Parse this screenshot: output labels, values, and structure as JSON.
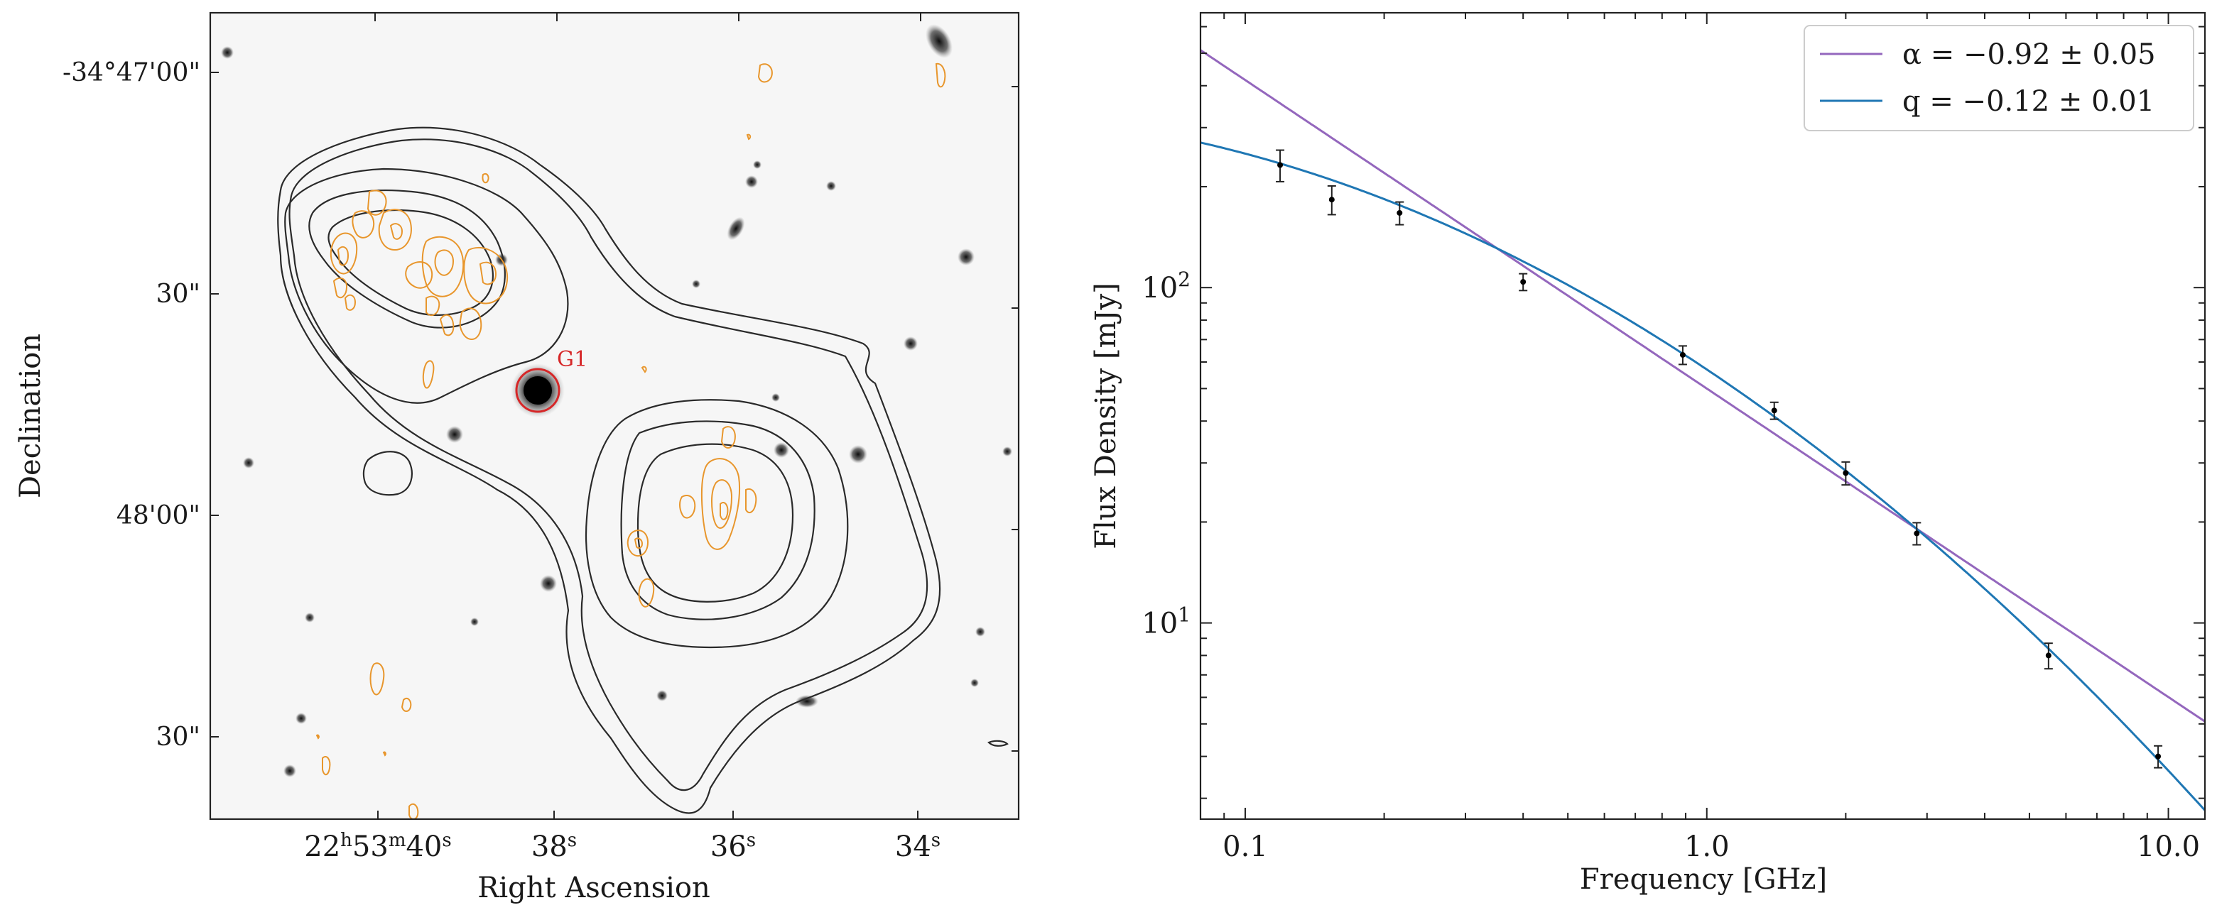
{
  "chart_data": [
    {
      "type": "image",
      "panel": "radio-contour-overlay",
      "xlabel": "Right Ascension",
      "ylabel": "Declination",
      "x_ticks": [
        {
          "h": "22",
          "m": "53",
          "s": "40"
        },
        {
          "s": "38"
        },
        {
          "s": "36"
        },
        {
          "s": "34"
        }
      ],
      "y_ticks": [
        "-34°47'00\"",
        "30\"",
        "48'00\"",
        "30\""
      ],
      "marker_label": "G1",
      "colors": {
        "contours": "#222222",
        "overlay_contours": "#e8962c",
        "marker": "#d62728",
        "background": "#f6f6f6"
      }
    },
    {
      "type": "line",
      "panel": "spectrum",
      "xscale": "log",
      "yscale": "log",
      "xlabel": "Frequency [GHz]",
      "ylabel": "Flux Density [mJy]",
      "xlim": [
        0.08,
        12.0
      ],
      "ylim": [
        2.6,
        660
      ],
      "x_tick_labels": [
        {
          "value": 0.1,
          "label": "0.1"
        },
        {
          "value": 1.0,
          "label": "1.0"
        },
        {
          "value": 10.0,
          "label": "10.0"
        }
      ],
      "y_tick_labels": [
        {
          "value": 100,
          "base": "10",
          "exp": "2"
        },
        {
          "value": 10,
          "base": "10",
          "exp": "1"
        }
      ],
      "measurements": [
        {
          "x": 0.119,
          "y": 232,
          "err": 25
        },
        {
          "x": 0.154,
          "y": 183,
          "err": 18
        },
        {
          "x": 0.216,
          "y": 167,
          "err": 13
        },
        {
          "x": 0.4,
          "y": 104,
          "err": 6
        },
        {
          "x": 0.887,
          "y": 63,
          "err": 4
        },
        {
          "x": 1.4,
          "y": 43,
          "err": 2.5
        },
        {
          "x": 2.0,
          "y": 28,
          "err": 2.2
        },
        {
          "x": 2.85,
          "y": 18.5,
          "err": 1.4
        },
        {
          "x": 5.5,
          "y": 8.0,
          "err": 0.7
        },
        {
          "x": 9.5,
          "y": 4.0,
          "err": 0.3
        }
      ],
      "series": [
        {
          "name": "alpha",
          "legend": "α = −0.92 ± 0.05",
          "color": "#9467bd",
          "model": "powerlaw",
          "alpha": -0.92,
          "S1GHz": 50
        },
        {
          "name": "q",
          "legend": "q = −0.12 ± 0.01",
          "color": "#1f77b4",
          "model": "curved",
          "a": -0.92,
          "q": -0.12,
          "S1GHz": 57
        }
      ],
      "legend_position": "top-right"
    }
  ]
}
